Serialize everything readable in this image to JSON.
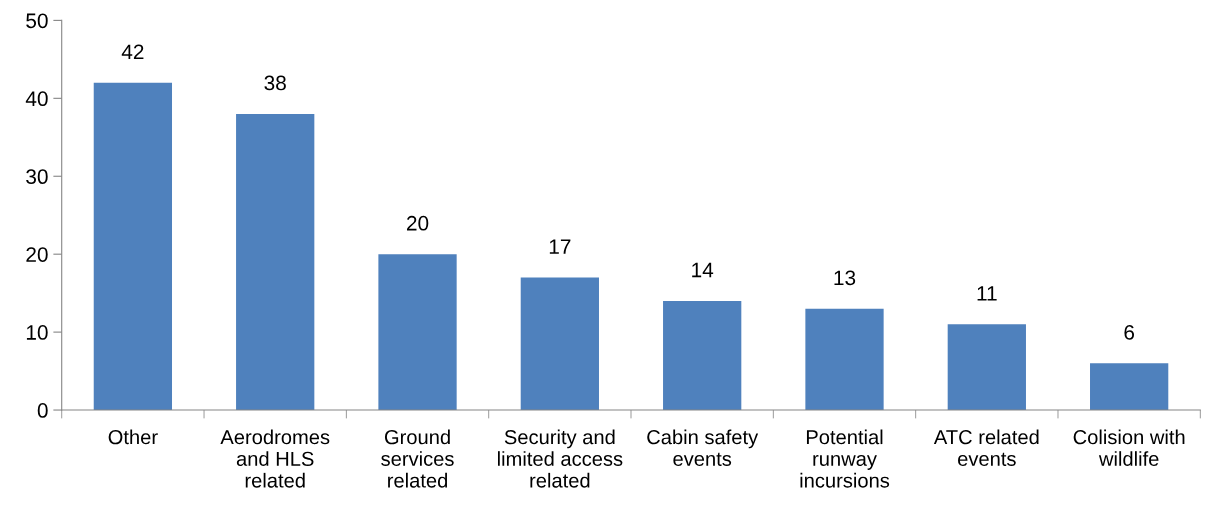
{
  "chart_data": {
    "type": "bar",
    "categories": [
      "Other",
      "Aerodromes\nand HLS\nrelated",
      "Ground\nservices\nrelated",
      "Security and\nlimited access\nrelated",
      "Cabin safety\nevents",
      "Potential\nrunway\nincursions",
      "ATC related\nevents",
      "Colision with\nwildlife"
    ],
    "values": [
      42,
      38,
      20,
      17,
      14,
      13,
      11,
      6
    ],
    "color": "#4f81bd",
    "ylim": [
      0,
      50
    ],
    "yticks": [
      0,
      10,
      20,
      30,
      40,
      50
    ],
    "data_labels": true
  }
}
